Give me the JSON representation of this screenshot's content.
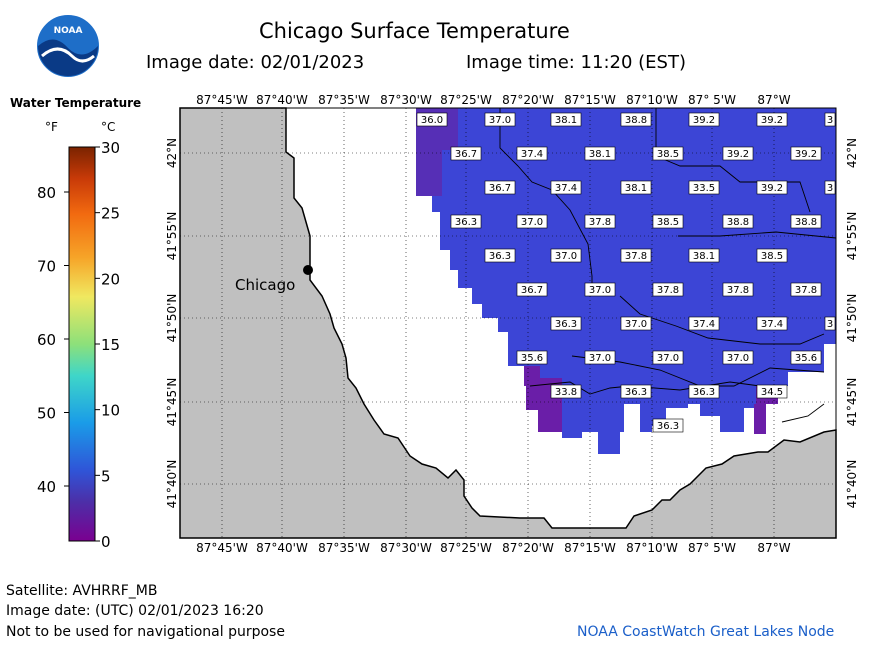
{
  "header": {
    "title": "Chicago Surface Temperature",
    "image_date": "Image date: 02/01/2023",
    "image_time": "Image time: 11:20 (EST)"
  },
  "logo": {
    "text": "NOAA",
    "icon": "noaa-logo-icon"
  },
  "legend": {
    "title": "Water Temperature",
    "unit_f": "°F",
    "unit_c": "°C",
    "f_ticks": [
      "80",
      "70",
      "60",
      "50",
      "40"
    ],
    "c_ticks": [
      "30",
      "25",
      "20",
      "15",
      "10",
      "5",
      "0"
    ]
  },
  "map": {
    "top_lon_labels": [
      "87°45'W",
      "87°40'W",
      "87°35'W",
      "87°30'W",
      "87°25'W",
      "87°20'W",
      "87°15'W",
      "87°10'W",
      "87° 5'W",
      "87°W"
    ],
    "bottom_lon_labels": [
      "87°45'W",
      "87°40'W",
      "87°35'W",
      "87°30'W",
      "87°25'W",
      "87°20'W",
      "87°15'W",
      "87°10'W",
      "87° 5'W",
      "87°W"
    ],
    "lat_labels": [
      "42°N",
      "41°55'N",
      "41°50'N",
      "41°45'N",
      "41°40'N"
    ],
    "city": "Chicago",
    "land_color": "#c0c0c0",
    "temp_labels": [
      [
        "36.0",
        "37.0",
        "38.1",
        "38.8",
        "39.2",
        "39.2",
        "3"
      ],
      [
        "36.7",
        "37.4",
        "38.1",
        "38.5",
        "39.2",
        "39.2"
      ],
      [
        "36.7",
        "37.4",
        "38.1",
        "33.5",
        "39.2",
        "3"
      ],
      [
        "36.3",
        "37.0",
        "37.8",
        "38.5",
        "38.8",
        "38.8"
      ],
      [
        "36.3",
        "37.0",
        "37.8",
        "38.1",
        "38.5"
      ],
      [
        "36.7",
        "37.0",
        "37.8",
        "37.8",
        "37.8"
      ],
      [
        "36.3",
        "37.0",
        "37.4",
        "37.4",
        "3"
      ],
      [
        "35.6",
        "37.0",
        "37.0",
        "37.0",
        "35.6"
      ],
      [
        "33.8",
        "36.3",
        "36.3",
        "34.5"
      ],
      [
        "36.3"
      ]
    ]
  },
  "footer": {
    "satellite": "Satellite: AVHRRF_MB",
    "utc_date": "Image date: (UTC) 02/01/2023  16:20",
    "disclaimer": "Not to be used for navigational purpose",
    "credit": "NOAA CoastWatch Great Lakes Node"
  }
}
